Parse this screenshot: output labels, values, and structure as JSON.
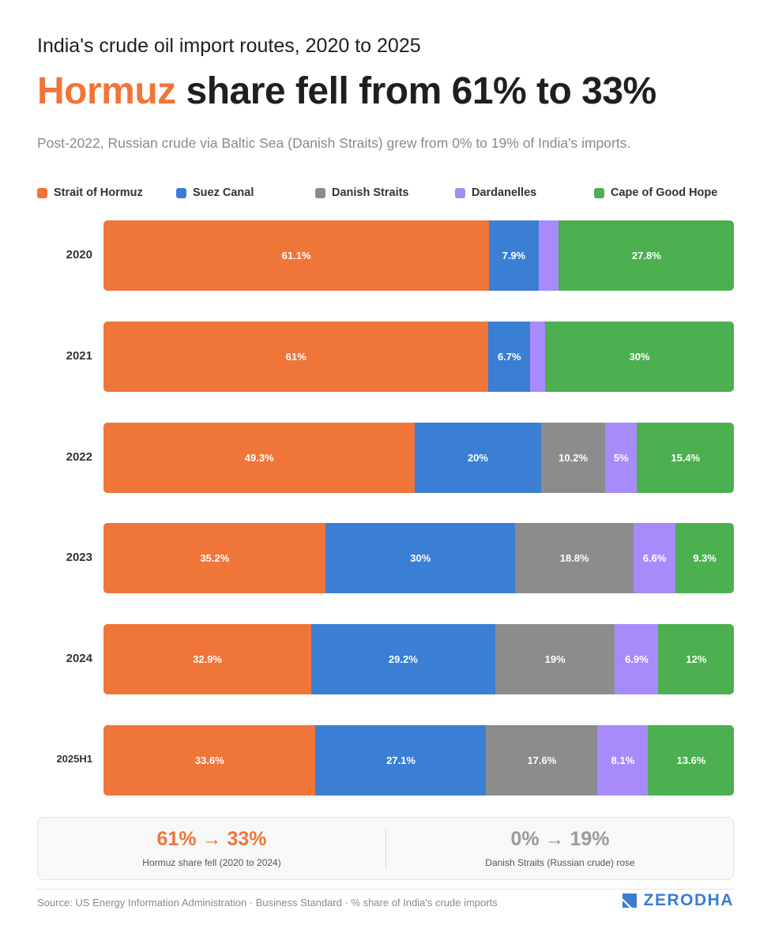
{
  "header": {
    "kicker": "India's crude oil import routes, 2020 to 2025",
    "headline_accent": "Hormuz",
    "headline_rest": " share fell from 61% to 33%",
    "description": "Post-2022, Russian crude via Baltic Sea (Danish Straits) grew from 0% to 19% of India's imports."
  },
  "colors": {
    "accent": "#f07539",
    "hormuz": "#f07539",
    "suez": "#3a7fd3",
    "danish": "#8c8c8c",
    "dardanelles": "#a78bfa",
    "cape": "#4caf50",
    "brand": "#387ed1",
    "muted": "#9a9a9a"
  },
  "chart_data": {
    "type": "bar",
    "orientation": "horizontal",
    "stacked": true,
    "unit": "% share of India's crude imports",
    "categories": [
      "2020",
      "2021",
      "2022",
      "2023",
      "2024",
      "2025H1"
    ],
    "series": [
      {
        "name": "Strait of Hormuz",
        "color": "#f07539",
        "values": [
          61.1,
          61,
          49.3,
          35.2,
          32.9,
          33.6
        ],
        "labels": [
          "61.1%",
          "61%",
          "49.3%",
          "35.2%",
          "32.9%",
          "33.6%"
        ]
      },
      {
        "name": "Suez Canal",
        "color": "#3a7fd3",
        "values": [
          7.9,
          6.7,
          20,
          30,
          29.2,
          27.1
        ],
        "labels": [
          "7.9%",
          "6.7%",
          "20%",
          "30%",
          "29.2%",
          "27.1%"
        ]
      },
      {
        "name": "Danish Straits",
        "color": "#8c8c8c",
        "values": [
          0,
          0,
          10.2,
          18.8,
          19,
          17.6
        ],
        "labels": [
          "",
          "",
          "10.2%",
          "18.8%",
          "19%",
          "17.6%"
        ]
      },
      {
        "name": "Dardanelles",
        "color": "#a78bfa",
        "values": [
          3.2,
          2.3,
          5,
          6.6,
          6.9,
          8.1
        ],
        "labels": [
          "",
          "",
          "5%",
          "6.6%",
          "6.9%",
          "8.1%"
        ]
      },
      {
        "name": "Cape of Good Hope",
        "color": "#4caf50",
        "values": [
          27.8,
          30,
          15.4,
          9.3,
          12,
          13.6
        ],
        "labels": [
          "27.8%",
          "30%",
          "15.4%",
          "9.3%",
          "12%",
          "13.6%"
        ]
      }
    ],
    "legend_position": "top",
    "grid": false
  },
  "summary": {
    "left_value": "61% → 33%",
    "left_caption": "Hormuz share fell (2020 to 2024)",
    "right_value": "0% → 19%",
    "right_caption": "Danish Straits (Russian crude) rose"
  },
  "footer": {
    "source": "Source: US Energy Information Administration · Business Standard · % share of India's crude imports",
    "brand": "ZERODHA"
  }
}
